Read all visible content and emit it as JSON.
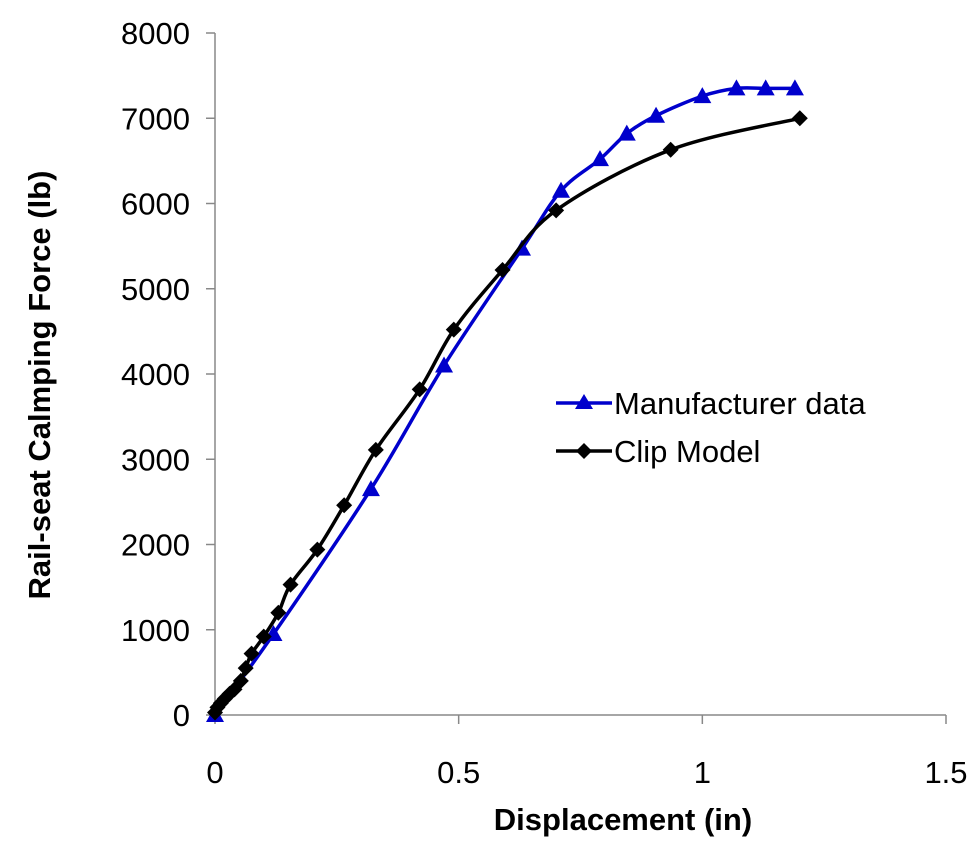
{
  "chart_data": {
    "type": "line",
    "title": "",
    "xlabel": "Displacement (in)",
    "ylabel": "Rail-seat Calmping Force (lb)",
    "xlim": [
      0,
      1.5
    ],
    "ylim": [
      0,
      8000
    ],
    "xticks": [
      0,
      0.5,
      1,
      1.5
    ],
    "xtick_labels": [
      "0",
      "0.5",
      "1",
      "1.5"
    ],
    "yticks": [
      0,
      1000,
      2000,
      3000,
      4000,
      5000,
      6000,
      7000,
      8000
    ],
    "ytick_labels": [
      "0",
      "1000",
      "2000",
      "3000",
      "4000",
      "5000",
      "6000",
      "7000",
      "8000"
    ],
    "grid": false,
    "legend_position": "right-middle",
    "series": [
      {
        "name": "Manufacturer data",
        "color": "#0000cc",
        "marker": "triangle",
        "x": [
          0,
          0.12,
          0.32,
          0.47,
          0.63,
          0.71,
          0.79,
          0.845,
          0.905,
          1.0,
          1.07,
          1.13,
          1.19
        ],
        "y": [
          0,
          950,
          2650,
          4100,
          5470,
          6150,
          6520,
          6820,
          7030,
          7260,
          7350,
          7350,
          7350
        ]
      },
      {
        "name": "Clip Model",
        "color": "#000000",
        "marker": "diamond",
        "x": [
          0,
          0.005,
          0.012,
          0.02,
          0.03,
          0.04,
          0.053,
          0.063,
          0.075,
          0.1,
          0.13,
          0.155,
          0.21,
          0.265,
          0.33,
          0.42,
          0.49,
          0.59,
          0.7,
          0.935,
          1.2
        ],
        "y": [
          30,
          90,
          140,
          190,
          250,
          300,
          400,
          550,
          720,
          920,
          1200,
          1530,
          1940,
          2460,
          3110,
          3820,
          4520,
          5220,
          5920,
          6630,
          7000
        ]
      }
    ]
  }
}
